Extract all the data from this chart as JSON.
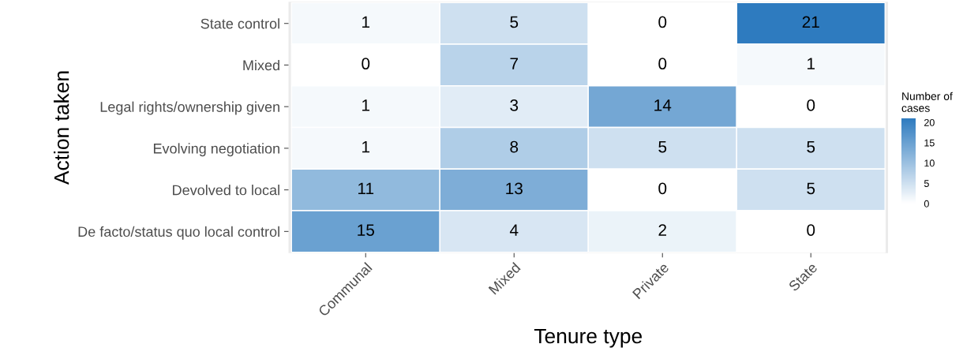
{
  "chart_data": {
    "type": "heatmap",
    "xlabel": "Tenure type",
    "ylabel": "Action taken",
    "clabel": "Number of\ncases",
    "categories": [
      "Communal",
      "Mixed",
      "Private",
      "State"
    ],
    "y_categories": [
      "State control",
      "Mixed",
      "Legal rights/ownership given",
      "Evolving negotiation",
      "Devolved to local",
      "De facto/status quo local control"
    ],
    "cells": [
      [
        1,
        5,
        0,
        21
      ],
      [
        0,
        7,
        0,
        1
      ],
      [
        1,
        3,
        14,
        0
      ],
      [
        1,
        8,
        5,
        5
      ],
      [
        11,
        13,
        0,
        5
      ],
      [
        15,
        4,
        2,
        0
      ]
    ],
    "clim": [
      0,
      21
    ],
    "cticks": [
      0,
      5,
      10,
      15,
      20
    ],
    "colors": [
      "#ffffff",
      "#2e7bbf"
    ],
    "data_labels": true
  }
}
